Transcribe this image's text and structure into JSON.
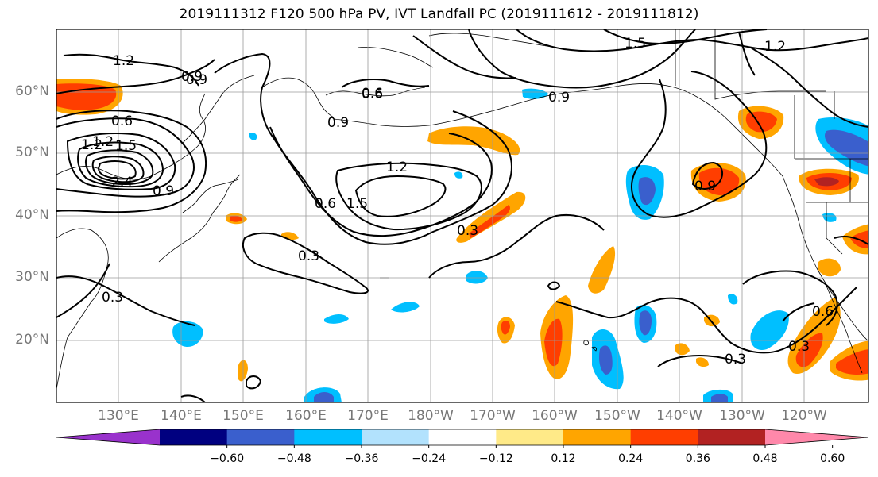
{
  "title": "2019111312 F120 500 hPa PV, IVT Landfall PC (2019111612 - 2019111812)",
  "map": {
    "lat_labels": [
      "60°N",
      "50°N",
      "40°N",
      "30°N",
      "20°N"
    ],
    "lon_labels": [
      "130°E",
      "140°E",
      "150°E",
      "160°E",
      "170°E",
      "180°W",
      "170°W",
      "160°W",
      "150°W",
      "140°W",
      "130°W",
      "120°W"
    ],
    "gridline_color": "#9a9a9a",
    "contour_labels": [
      "1.2",
      "0.9",
      "0.6",
      "1.2",
      "1.5",
      "1.2",
      "0.6",
      "0.9",
      "0.6",
      "1.5",
      "0.9",
      "1.2",
      "2.4",
      "0.9",
      "1.2",
      "1.5",
      "0.6",
      "0.3",
      "0.9",
      "0.3",
      "0.6",
      "0.3",
      "0.3",
      "0.3",
      "0.9"
    ]
  },
  "colorbar": {
    "colors": [
      "#9932cc",
      "#000080",
      "#3a5fcd",
      "#00bfff",
      "#b2e2fd",
      "#ffffff",
      "#ffea88",
      "#ffa500",
      "#ff3e00",
      "#b22222",
      "#ff88aa"
    ],
    "tick_labels": [
      "−0.60",
      "−0.48",
      "−0.36",
      "−0.24",
      "−0.12",
      "0.12",
      "0.24",
      "0.36",
      "0.48",
      "0.60"
    ]
  }
}
